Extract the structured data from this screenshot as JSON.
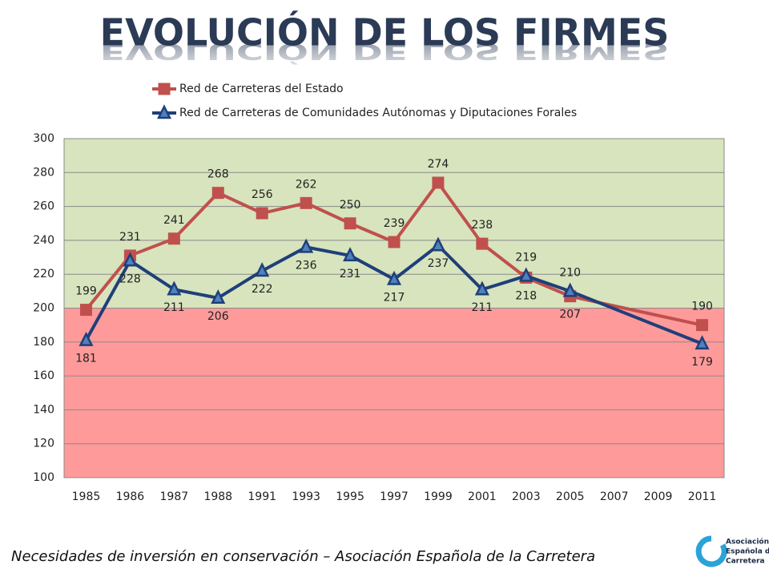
{
  "chart_data": {
    "type": "line",
    "title": "EVOLUCIÓN DE LOS FIRMES",
    "categories": [
      "1985",
      "1986",
      "1987",
      "1988",
      "1991",
      "1993",
      "1995",
      "1997",
      "1999",
      "2001",
      "2003",
      "2005",
      "2007",
      "2009",
      "2011"
    ],
    "series": [
      {
        "name": "Red de Carreteras del Estado",
        "color": "#c0504d",
        "marker": "square",
        "values": [
          199,
          231,
          241,
          268,
          256,
          262,
          250,
          239,
          274,
          238,
          218,
          207,
          null,
          null,
          190
        ]
      },
      {
        "name": "Red de Carreteras de Comunidades Autónomas y Diputaciones Forales",
        "color": "#1f3f7a",
        "marker": "triangle",
        "values": [
          181,
          228,
          211,
          206,
          222,
          236,
          231,
          217,
          237,
          211,
          219,
          210,
          null,
          null,
          179
        ]
      }
    ],
    "span_gaps": true,
    "ylim": [
      100,
      300
    ],
    "yticks": [
      100,
      120,
      140,
      160,
      180,
      200,
      220,
      240,
      260,
      280,
      300
    ],
    "grid": true,
    "bands": [
      {
        "from": 200,
        "to": 300,
        "color": "#d7e4bd"
      },
      {
        "from": 100,
        "to": 200,
        "color": "#ff9a9a"
      }
    ],
    "legend": "top"
  },
  "footer": "Necesidades de inversión en conservación – Asociación Española de la Carretera",
  "logo": [
    "Asociación",
    "Española de la",
    "Carretera"
  ]
}
